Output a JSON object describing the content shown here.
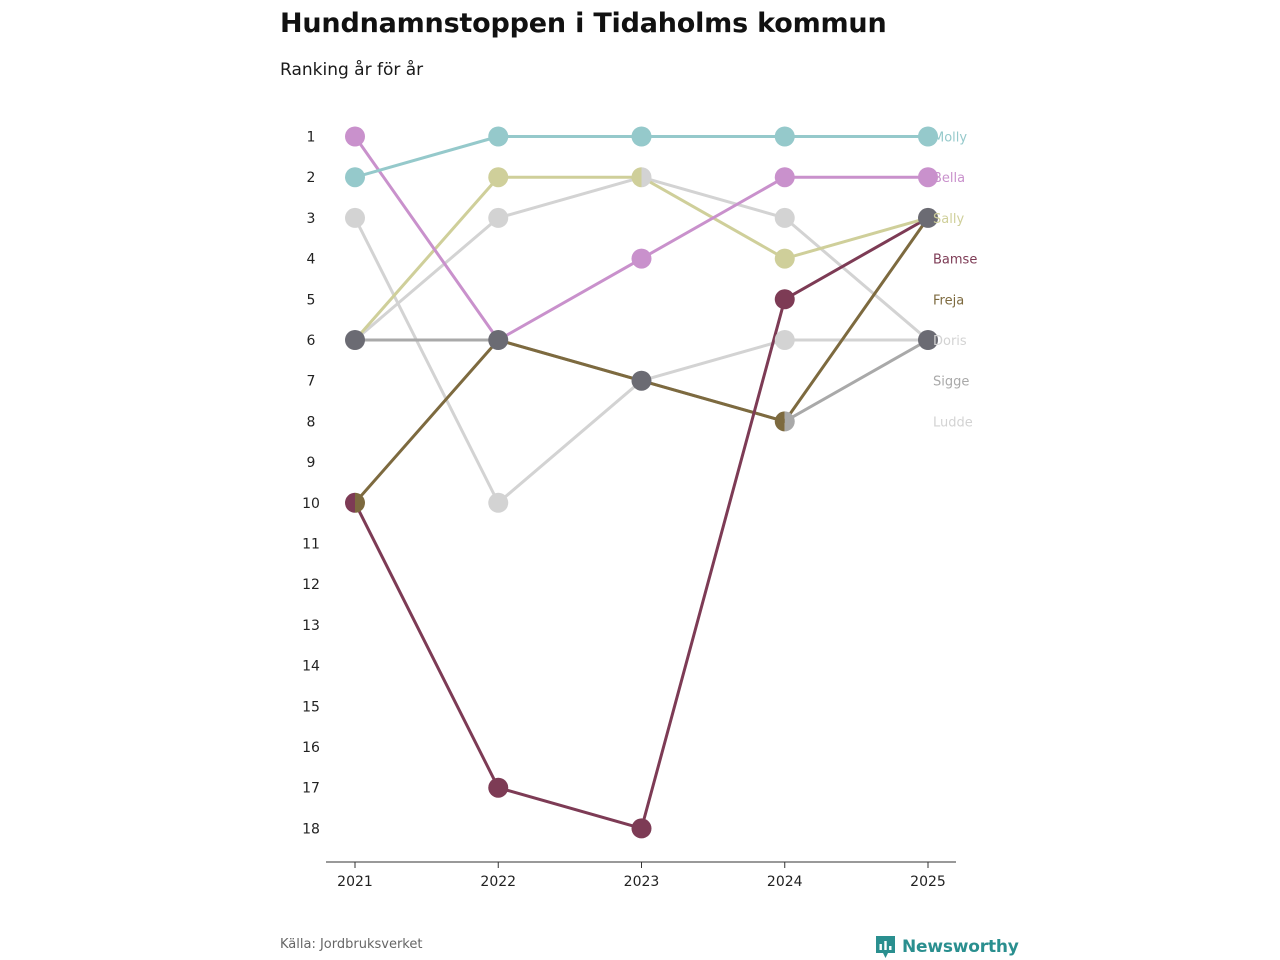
{
  "title": "Hundnamnstoppen i Tidaholms kommun",
  "subtitle": "Ranking år för år",
  "source": "Källa: Jordbruksverket",
  "brand": "Newsworthy",
  "chart_data": {
    "type": "line",
    "x": [
      "2021",
      "2022",
      "2023",
      "2024",
      "2025"
    ],
    "y_ticks": [
      "1",
      "2",
      "3",
      "4",
      "5",
      "6",
      "7",
      "8",
      "9",
      "10",
      "11",
      "12",
      "13",
      "14",
      "15",
      "16",
      "17",
      "18"
    ],
    "ylim": [
      1,
      18
    ],
    "y_inverted": true,
    "grid": false,
    "series": [
      {
        "name": "Ludde",
        "color": "#d3d3d3",
        "values": [
          3,
          10,
          7,
          6,
          6
        ]
      },
      {
        "name": "Doris",
        "color": "#d3d3d3",
        "values": [
          6,
          3,
          2,
          3,
          6
        ]
      },
      {
        "name": "Sigge",
        "color": "#a9a9a9",
        "values": [
          6,
          6,
          7,
          8,
          6
        ]
      },
      {
        "name": "Freja",
        "color": "#7d6a3f",
        "values": [
          10,
          6,
          7,
          8,
          3
        ]
      },
      {
        "name": "Bamse",
        "color": "#7d3b55",
        "values": [
          10,
          17,
          18,
          5,
          3
        ]
      },
      {
        "name": "Sally",
        "color": "#cfcf9a",
        "values": [
          6,
          2,
          2,
          4,
          3
        ]
      },
      {
        "name": "Bella",
        "color": "#c991cc",
        "values": [
          1,
          6,
          4,
          2,
          2
        ]
      },
      {
        "name": "Molly",
        "color": "#95c9cb",
        "values": [
          2,
          1,
          1,
          1,
          1
        ]
      }
    ],
    "end_labels": [
      {
        "name": "Molly",
        "rank": 1,
        "color": "#95c9cb"
      },
      {
        "name": "Bella",
        "rank": 2,
        "color": "#c991cc"
      },
      {
        "name": "Sally",
        "rank": 3,
        "color": "#cfcf9a"
      },
      {
        "name": "Bamse",
        "rank": 4,
        "color": "#7d3b55"
      },
      {
        "name": "Freja",
        "rank": 5,
        "color": "#7d6a3f"
      },
      {
        "name": "Doris",
        "rank": 6,
        "color": "#d3d3d3"
      },
      {
        "name": "Sigge",
        "rank": 7,
        "color": "#a9a9a9"
      },
      {
        "name": "Ludde",
        "rank": 8,
        "color": "#d3d3d3"
      }
    ],
    "overlap_marker_color": "#6b6b73"
  }
}
